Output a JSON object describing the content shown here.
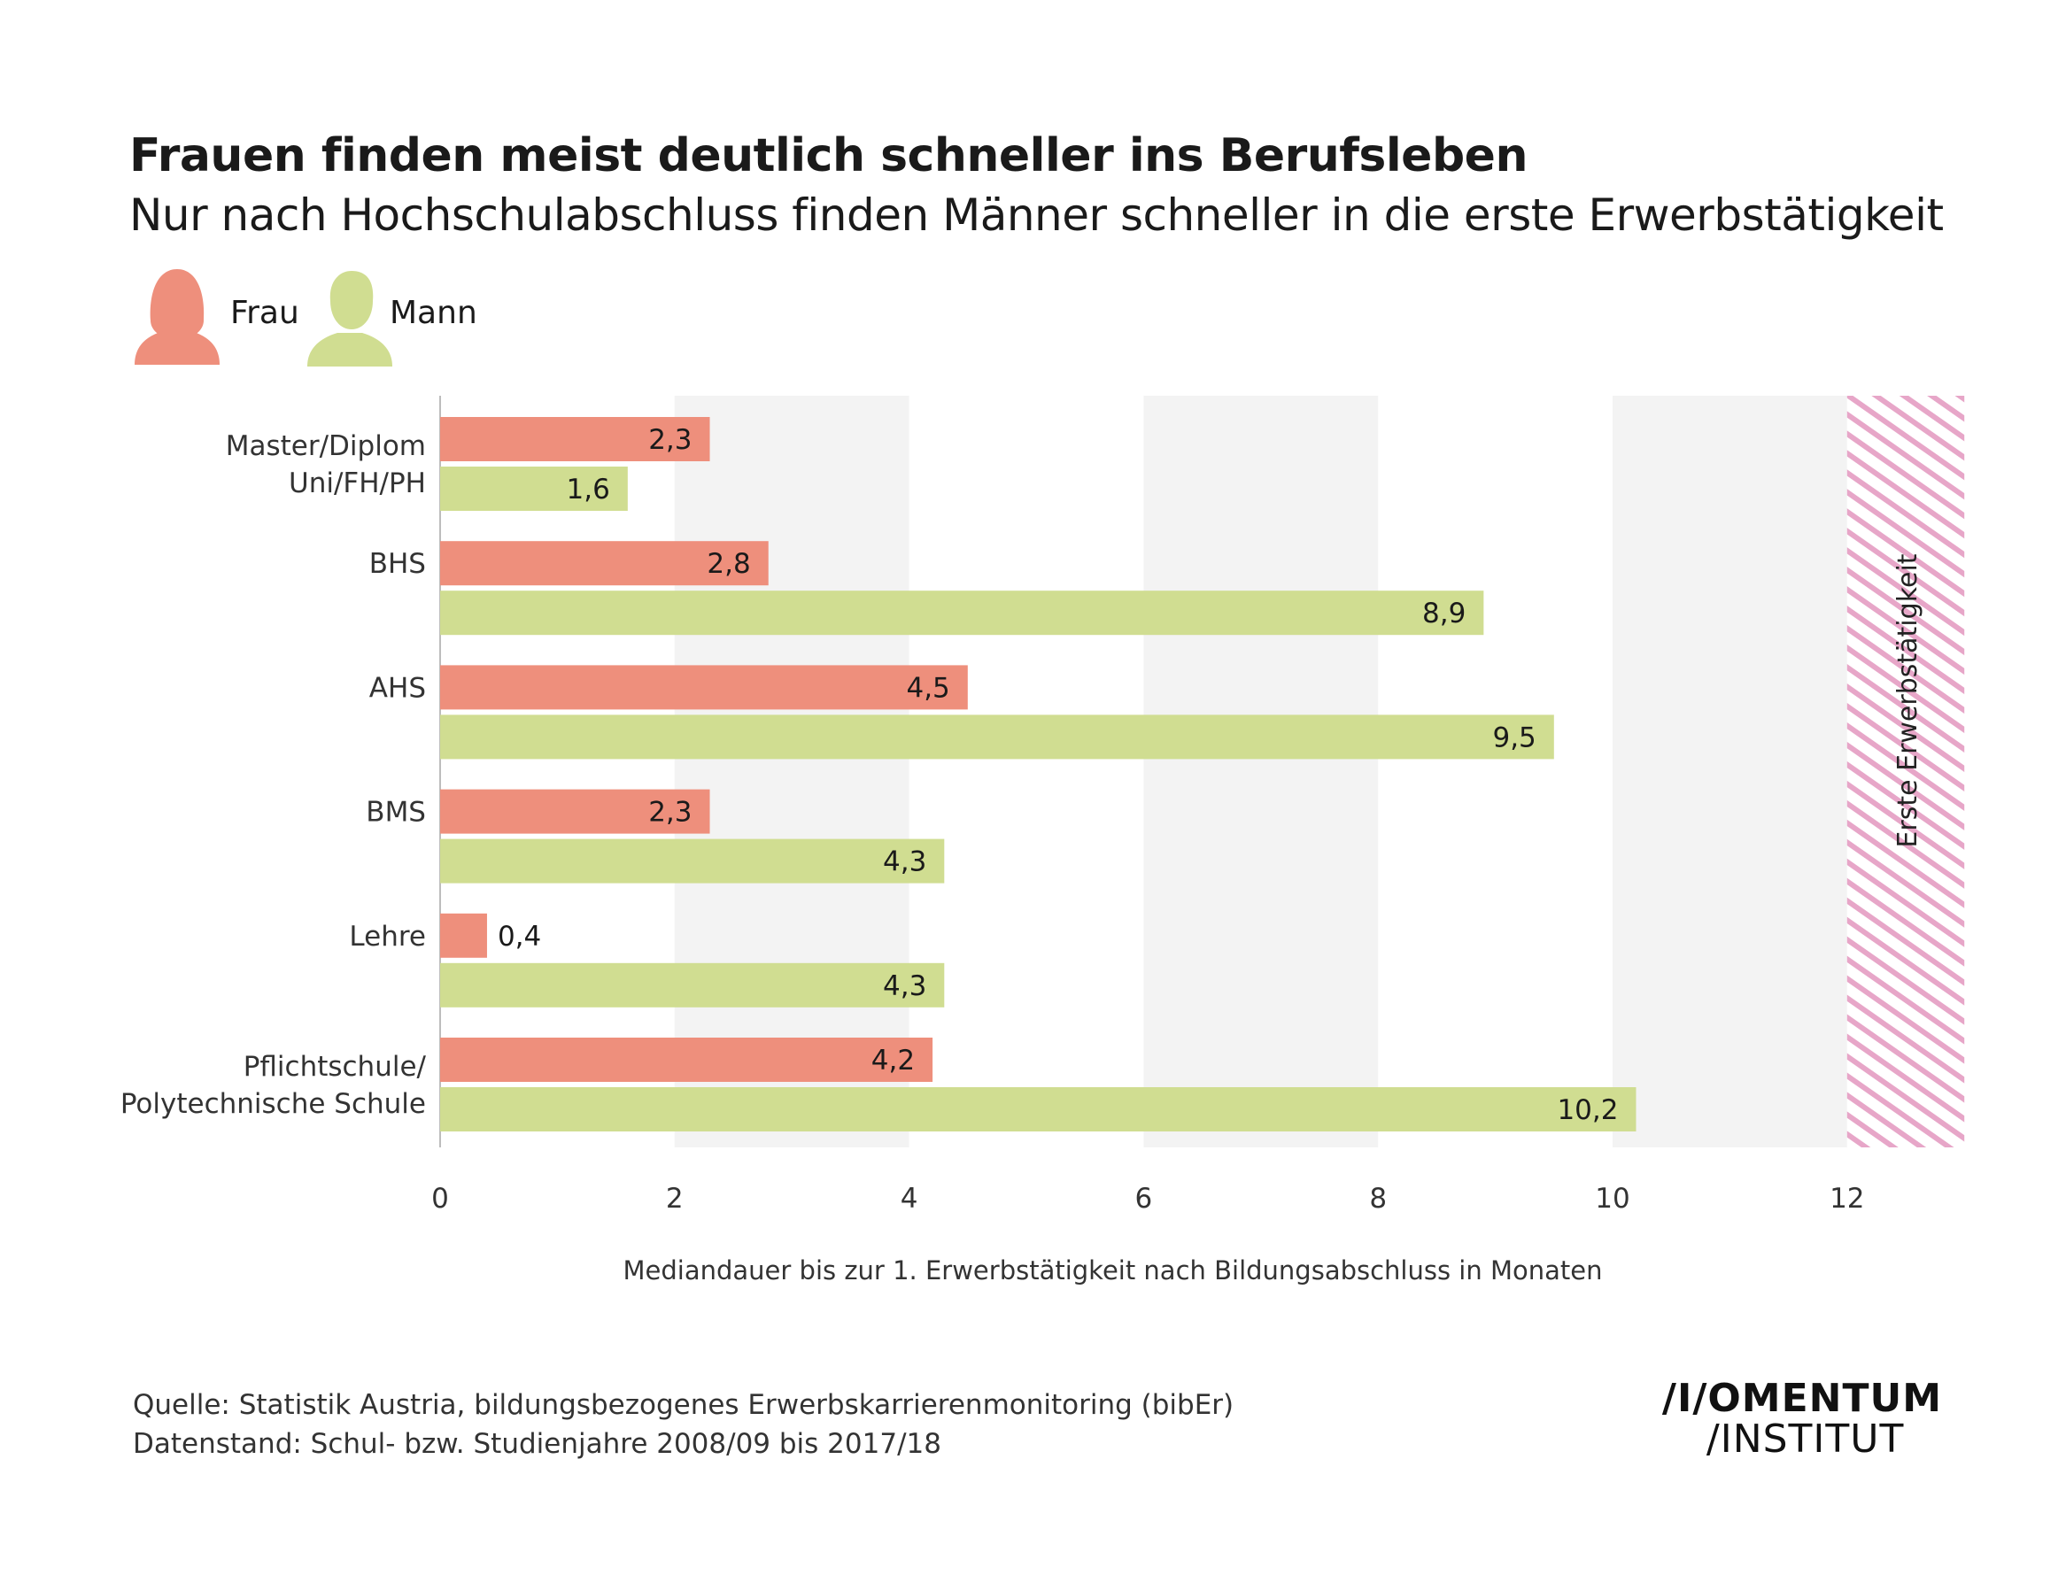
{
  "header": {
    "title": "Frauen finden meist deutlich schneller ins Berufsleben",
    "subtitle": "Nur nach Hochschulabschluss finden Männer schneller in die erste Erwerbstätigkeit"
  },
  "legend": [
    {
      "label": "Frau",
      "icon": "woman-icon",
      "color": "#EE8F7C"
    },
    {
      "label": "Mann",
      "icon": "man-icon",
      "color": "#D0DD91"
    }
  ],
  "chart_data": {
    "type": "bar",
    "orientation": "horizontal",
    "categories": [
      [
        "Master/Diplom",
        "Uni/FH/PH"
      ],
      [
        "BHS"
      ],
      [
        "AHS"
      ],
      [
        "BMS"
      ],
      [
        "Lehre"
      ],
      [
        "Pflichtschule/",
        "Polytechnische Schule"
      ]
    ],
    "series": [
      {
        "name": "Frau",
        "color": "#EE8F7C",
        "values": [
          2.3,
          2.8,
          4.5,
          2.3,
          0.4,
          4.2
        ],
        "labels": [
          "2,3",
          "2,8",
          "4,5",
          "2,3",
          "0,4",
          "4,2"
        ]
      },
      {
        "name": "Mann",
        "color": "#D0DD91",
        "values": [
          1.6,
          8.9,
          9.5,
          4.3,
          4.3,
          10.2
        ],
        "labels": [
          "1,6",
          "8,9",
          "9,5",
          "4,3",
          "4,3",
          "10,2"
        ]
      }
    ],
    "xlim": [
      0,
      13
    ],
    "xticks": [
      0,
      2,
      4,
      6,
      8,
      10,
      12
    ],
    "xlabel": "Mediandauer bis zur 1. Erwerbstätigkeit nach Bildungsabschluss in Monaten",
    "ylabel": "",
    "grid": "alternating vertical bands",
    "band_color": "#F3F3F3",
    "marker": {
      "from": 12,
      "to": 13,
      "label": "Erste Erwerbstätigkeit",
      "color": "#E7A6C8"
    }
  },
  "footer": {
    "source_line1": "Quelle: Statistik Austria, bildungsbezogenes Erwerbskarrierenmonitoring (bibEr)",
    "source_line2": "Datenstand: Schul- bzw. Studienjahre 2008/09 bis 2017/18",
    "logo_line1": "/I/OMENTUM",
    "logo_line2": "/INSTITUT"
  }
}
